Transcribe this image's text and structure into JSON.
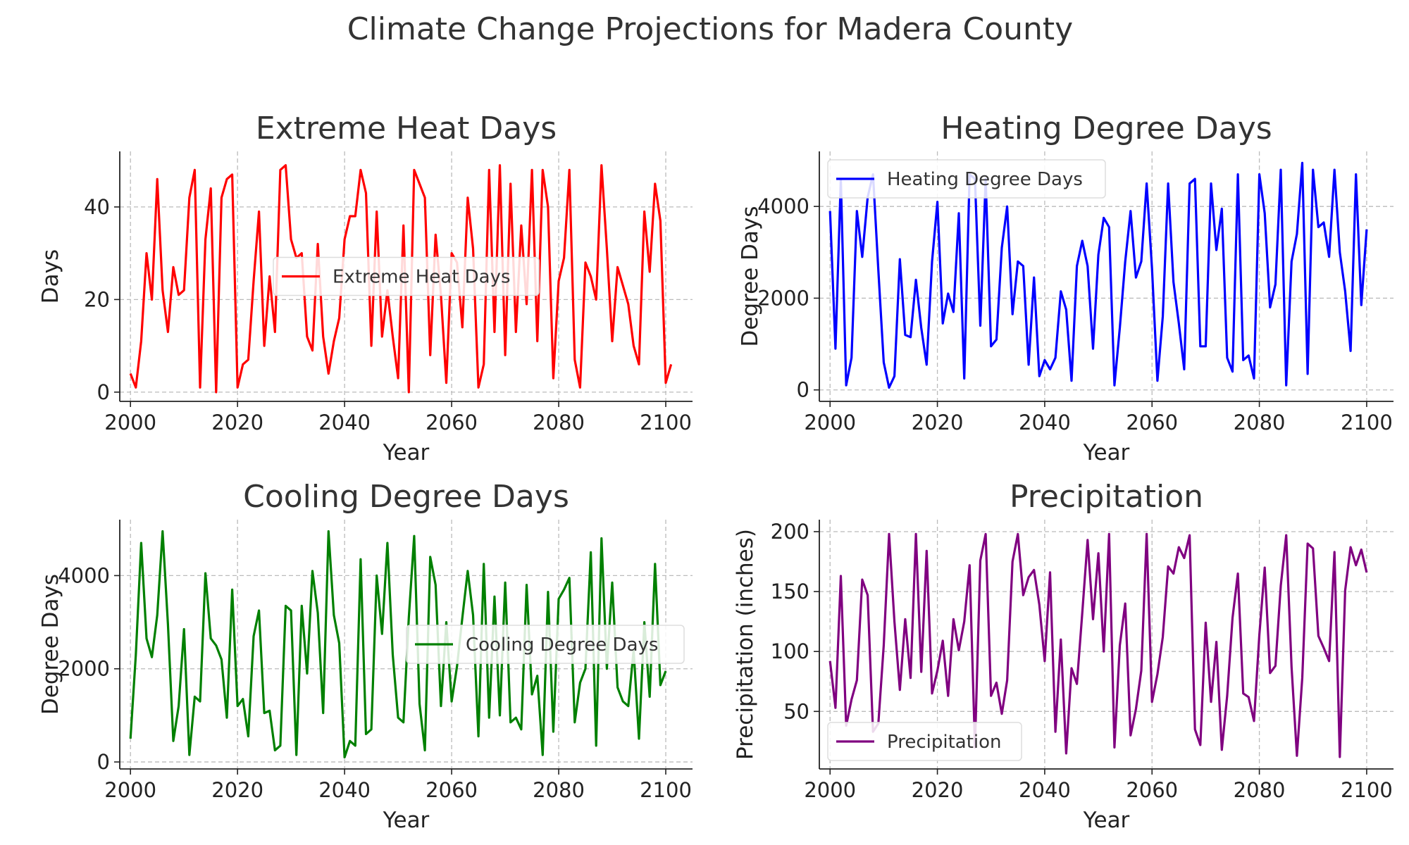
{
  "figure_title": "Climate Change Projections for Madera County",
  "chart_data": [
    {
      "type": "line",
      "title": "Extreme Heat Days",
      "xlabel": "Year",
      "ylabel": "Days",
      "color": "#ff0000",
      "legend": "center",
      "grid": true,
      "xlim": [
        1998,
        2105
      ],
      "ylim": [
        -2,
        52
      ],
      "xticks": [
        2000,
        2020,
        2040,
        2060,
        2080,
        2100
      ],
      "yticks": [
        0,
        20,
        40
      ],
      "series": [
        {
          "name": "Extreme Heat Days",
          "x_start": 2000,
          "values": [
            4,
            1,
            11,
            30,
            20,
            46,
            22,
            13,
            27,
            21,
            22,
            42,
            48,
            1,
            33,
            44,
            0,
            42,
            46,
            47,
            1,
            6,
            7,
            24,
            39,
            10,
            25,
            13,
            48,
            49,
            33,
            29,
            30,
            12,
            9,
            32,
            12,
            4,
            11,
            16,
            33,
            38,
            38,
            48,
            43,
            10,
            39,
            12,
            22,
            12,
            3,
            36,
            0,
            48,
            45,
            42,
            8,
            34,
            21,
            2,
            30,
            28,
            14,
            42,
            31,
            1,
            6,
            48,
            13,
            49,
            8,
            45,
            13,
            36,
            19,
            48,
            11,
            48,
            40,
            3,
            24,
            29,
            48,
            7,
            1,
            28,
            25,
            20,
            49,
            31,
            11,
            27,
            23,
            19,
            10,
            6,
            39,
            26,
            45,
            37,
            2,
            6
          ]
        }
      ]
    },
    {
      "type": "line",
      "title": "Heating Degree Days",
      "xlabel": "Year",
      "ylabel": "Degree Days",
      "color": "#0000ff",
      "legend": "top-left",
      "grid": true,
      "xlim": [
        1998,
        2105
      ],
      "ylim": [
        -250,
        5200
      ],
      "xticks": [
        2000,
        2020,
        2040,
        2060,
        2080,
        2100
      ],
      "yticks": [
        0,
        2000,
        4000
      ],
      "series": [
        {
          "name": "Heating Degree Days",
          "x_start": 2000,
          "values": [
            3900,
            900,
            4600,
            100,
            700,
            3900,
            2900,
            4200,
            4700,
            2600,
            600,
            50,
            300,
            2850,
            1200,
            1150,
            2400,
            1350,
            550,
            2800,
            4100,
            1450,
            2100,
            1700,
            3850,
            250,
            4700,
            4600,
            1400,
            4600,
            950,
            1100,
            3100,
            4000,
            1650,
            2800,
            2700,
            550,
            2450,
            300,
            650,
            450,
            700,
            2150,
            1750,
            200,
            2700,
            3250,
            2700,
            900,
            2950,
            3750,
            3550,
            100,
            1350,
            2800,
            3900,
            2450,
            2800,
            4500,
            2650,
            200,
            1600,
            4500,
            2350,
            1450,
            450,
            4500,
            4600,
            950,
            950,
            4500,
            3050,
            3950,
            700,
            400,
            4700,
            650,
            750,
            250,
            4700,
            3850,
            1800,
            2300,
            4800,
            100,
            2800,
            3400,
            4950,
            350,
            4800,
            3550,
            3650,
            2900,
            4800,
            3000,
            2150,
            850,
            4700,
            1850,
            3500
          ]
        }
      ]
    },
    {
      "type": "line",
      "title": "Cooling Degree Days",
      "xlabel": "Year",
      "ylabel": "Degree Days",
      "color": "#008000",
      "legend": "center-right",
      "grid": true,
      "xlim": [
        1998,
        2105
      ],
      "ylim": [
        -150,
        5200
      ],
      "xticks": [
        2000,
        2020,
        2040,
        2060,
        2080,
        2100
      ],
      "yticks": [
        0,
        2000,
        4000
      ],
      "series": [
        {
          "name": "Cooling Degree Days",
          "x_start": 2000,
          "values": [
            500,
            2300,
            4700,
            2650,
            2250,
            3150,
            4950,
            2950,
            450,
            1200,
            2850,
            150,
            1400,
            1300,
            4050,
            2650,
            2500,
            2200,
            950,
            3700,
            1200,
            1350,
            550,
            2700,
            3250,
            1050,
            1100,
            250,
            350,
            3350,
            3250,
            150,
            3350,
            1900,
            4100,
            3200,
            1050,
            4950,
            3150,
            2550,
            100,
            450,
            350,
            4350,
            600,
            700,
            4000,
            2750,
            4700,
            2300,
            950,
            850,
            3100,
            4850,
            1250,
            250,
            4400,
            3800,
            1200,
            3000,
            1300,
            2050,
            3100,
            4100,
            3150,
            550,
            4250,
            950,
            3550,
            1000,
            3850,
            850,
            950,
            700,
            3800,
            1450,
            1850,
            150,
            3650,
            650,
            3500,
            3700,
            3950,
            850,
            1700,
            2000,
            4500,
            350,
            4800,
            2000,
            3850,
            1600,
            1300,
            1200,
            2400,
            500,
            3000,
            1400,
            4250,
            1650,
            1950
          ]
        }
      ]
    },
    {
      "type": "line",
      "title": "Precipitation",
      "xlabel": "Year",
      "ylabel": "Precipitation (inches)",
      "color": "#800080",
      "legend": "bottom-left",
      "grid": true,
      "xlim": [
        1998,
        2105
      ],
      "ylim": [
        2,
        210
      ],
      "xticks": [
        2000,
        2020,
        2040,
        2060,
        2080,
        2100
      ],
      "yticks": [
        50,
        100,
        150,
        200
      ],
      "series": [
        {
          "name": "Precipitation",
          "x_start": 2000,
          "values": [
            92,
            53,
            163,
            38,
            60,
            76,
            160,
            147,
            33,
            40,
            105,
            198,
            125,
            68,
            127,
            78,
            198,
            83,
            184,
            65,
            84,
            109,
            63,
            127,
            101,
            125,
            172,
            20,
            176,
            198,
            63,
            74,
            48,
            76,
            175,
            198,
            147,
            162,
            168,
            139,
            92,
            166,
            33,
            110,
            15,
            86,
            73,
            132,
            193,
            127,
            182,
            100,
            198,
            20,
            105,
            140,
            30,
            52,
            84,
            198,
            58,
            81,
            112,
            171,
            165,
            187,
            178,
            197,
            35,
            22,
            124,
            58,
            108,
            18,
            63,
            128,
            165,
            65,
            62,
            42,
            114,
            170,
            82,
            88,
            155,
            197,
            87,
            13,
            78,
            190,
            186,
            113,
            103,
            92,
            183,
            12,
            151,
            187,
            172,
            185,
            166
          ]
        }
      ]
    }
  ]
}
